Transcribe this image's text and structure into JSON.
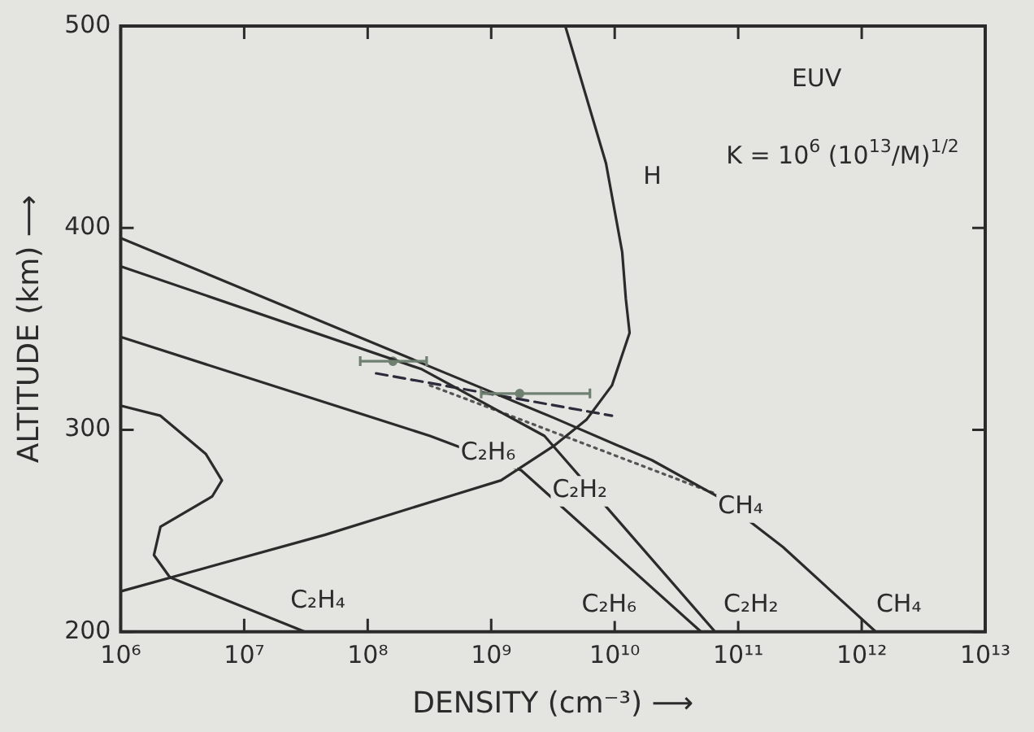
{
  "chart_data": {
    "type": "line",
    "xlabel": "DENSITY (cm⁻³) ⟶",
    "ylabel": "ALTITUDE (km) ⟶",
    "log": "x",
    "xlim": [
      1000000.0,
      10000000000000.0
    ],
    "ylim": [
      200,
      500
    ],
    "xticks": [
      {
        "value": 1000000.0,
        "label": "10⁶"
      },
      {
        "value": 10000000.0,
        "label": "10⁷"
      },
      {
        "value": 100000000.0,
        "label": "10⁸"
      },
      {
        "value": 1000000000.0,
        "label": "10⁹"
      },
      {
        "value": 10000000000.0,
        "label": "10¹⁰"
      },
      {
        "value": 100000000000.0,
        "label": "10¹¹"
      },
      {
        "value": 1000000000000.0,
        "label": "10¹²"
      },
      {
        "value": 10000000000000.0,
        "label": "10¹³"
      }
    ],
    "yticks": [
      200,
      300,
      400,
      500
    ],
    "series": [
      {
        "color": "#2b2b2b",
        "x": [
          3980000000.0,
          8500000000.0,
          11500000000.0,
          12300000000.0,
          13200000000.0,
          9500000000.0,
          5900000000.0,
          3200000000.0,
          1200000000.0,
          510000000.0,
          45000000.0,
          1000000.0
        ],
        "values": [
          500,
          432,
          388,
          365,
          348,
          322,
          305,
          292,
          275,
          268,
          248,
          220
        ]
      },
      {
        "color": "#2b2b2b",
        "x": [
          1000000.0,
          275000000.0,
          3200000000.0,
          20000000000.0,
          68000000000.0,
          230000000000.0,
          1300000000000.0
        ],
        "values": [
          395,
          333,
          306,
          285,
          267,
          242,
          200
        ]
      },
      {
        "color": "#2b2b2b",
        "x": [
          1000000.0,
          275000000.0,
          2700000000.0,
          65000000000.0
        ],
        "values": [
          381,
          330,
          297,
          200
        ]
      },
      {
        "color": "#2b2b2b",
        "x": [
          1000000.0,
          320000000.0,
          1750000000.0,
          50000000000.0
        ],
        "values": [
          346,
          297,
          280,
          200
        ]
      },
      {
        "color": "#2b2b2b",
        "x": [
          1000000.0,
          2100000.0,
          4900000.0,
          6600000.0,
          5500000.0,
          2100000.0,
          1860000.0,
          2500000.0,
          31000000.0
        ],
        "values": [
          312,
          307,
          288,
          275,
          267,
          252,
          238,
          227,
          200
        ]
      },
      {
        "color": "#2b2b3b",
        "line_style": "dashed",
        "x": [
          117000000.0,
          9500000000.0
        ],
        "values": [
          328,
          307
        ]
      },
      {
        "color": "#555555",
        "line_style": "dotted",
        "x": [
          320000000.0,
          1750000000.0,
          68000000000.0
        ],
        "values": [
          322,
          305,
          268
        ]
      },
      {
        "type": "scatter",
        "marker": "circle",
        "color": "#6f8070",
        "x": [
          160000000.0,
          1700000000.0
        ],
        "values": [
          334,
          318
        ],
        "xerrors": [
          [
            87000000.0,
            300000000.0
          ],
          [
            830000000.0,
            6300000000.0
          ]
        ]
      }
    ],
    "annotations": [
      "H",
      "EUV",
      "K = 10$^{6}$ (10$^{13}$/M)$^{1/2}$",
      "C₂H₆",
      "C₂H₂",
      "CH₄",
      "C₂H₄",
      "C₂H₆",
      "C₂H₂",
      "CH₄"
    ]
  }
}
